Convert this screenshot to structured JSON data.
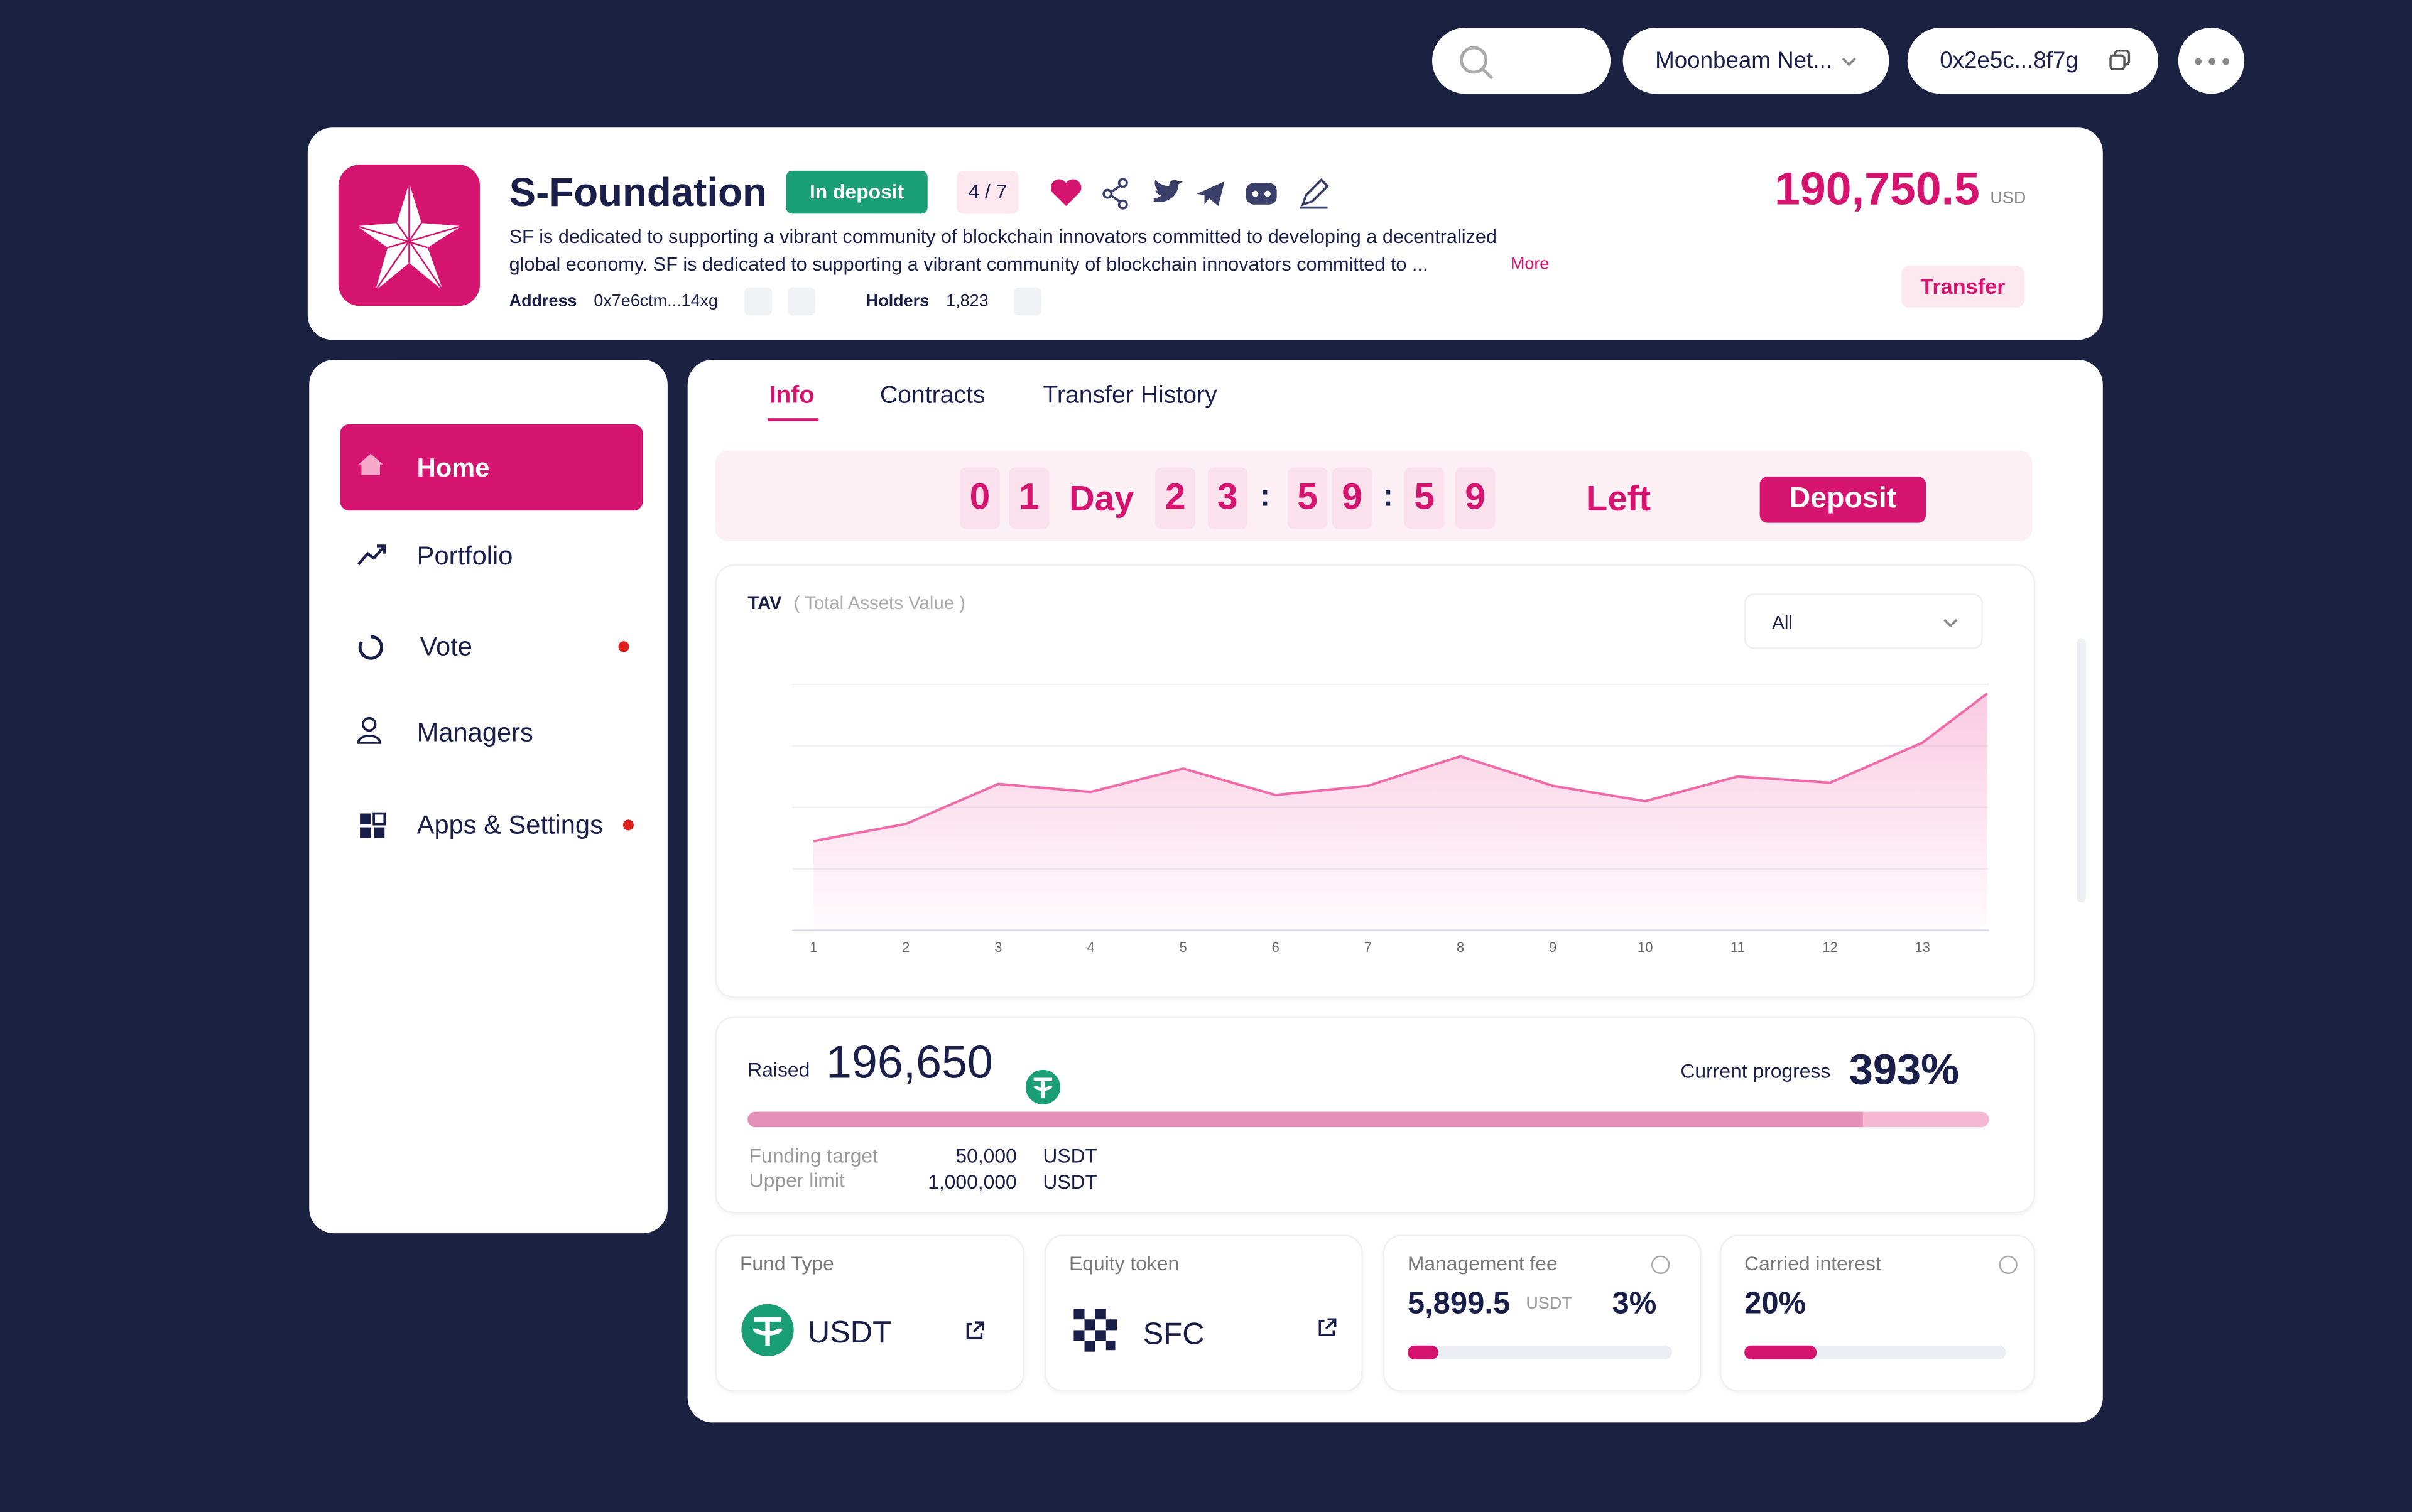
{
  "topbar": {
    "network": "Moonbeam Net...",
    "wallet": "0x2e5c...8f7g"
  },
  "header": {
    "title": "S-Foundation",
    "status": "In deposit",
    "rank": "4 / 7",
    "description_line1": "SF is dedicated to supporting a vibrant community of blockchain innovators committed to developing a decentralized",
    "description_line2": "global economy. SF is dedicated to supporting a vibrant community of blockchain innovators committed to ...",
    "more": "More",
    "address_label": "Address",
    "address": "0x7e6ctm...14xg",
    "holders_label": "Holders",
    "holders": "1,823",
    "amount": "190,750.5",
    "currency": "USD",
    "transfer": "Transfer"
  },
  "sidebar": {
    "items": [
      "Home",
      "Portfolio",
      "Vote",
      "Managers",
      "Apps & Settings"
    ]
  },
  "tabs": [
    "Info",
    "Contracts",
    "Transfer History"
  ],
  "countdown": {
    "digits": [
      "0",
      "1",
      "2",
      "3",
      "5",
      "9",
      "5",
      "9"
    ],
    "day": "Day",
    "separator": ":",
    "left": "Left",
    "deposit": "Deposit"
  },
  "chart_data": {
    "type": "area",
    "title": "TAV",
    "subtitle": "( Total Assets Value )",
    "filter": "All",
    "x": [
      1,
      2,
      3,
      4,
      5,
      6,
      7,
      8,
      9,
      10,
      11,
      12,
      13,
      13.7
    ],
    "values": [
      1.45,
      1.73,
      2.38,
      2.25,
      2.63,
      2.2,
      2.35,
      2.83,
      2.35,
      2.1,
      2.5,
      2.4,
      3.05,
      3.85
    ],
    "xlim": [
      0.77,
      13.72
    ],
    "xticks": [
      1,
      2,
      3,
      4,
      5,
      6,
      7,
      8,
      9,
      10,
      11,
      12,
      13
    ],
    "ylim": [
      0,
      4
    ],
    "yticks": [
      0,
      1,
      2,
      3,
      4
    ],
    "grid": true,
    "color": "#f06aa9"
  },
  "raised": {
    "label": "Raised",
    "amount": "196,650",
    "progress_label": "Current progress",
    "progress": "393%",
    "target_label": "Funding target",
    "target": "50,000",
    "limit_label": "Upper limit",
    "limit": "1,000,000",
    "unit": "USDT"
  },
  "cards": [
    {
      "label": "Fund Type",
      "value": "USDT"
    },
    {
      "label": "Equity token",
      "value": "SFC"
    },
    {
      "label": "Management fee",
      "value": "5,899.5",
      "unit": "USDT",
      "rate": "3%"
    },
    {
      "label": "Carried interest",
      "rate": "20%"
    }
  ]
}
